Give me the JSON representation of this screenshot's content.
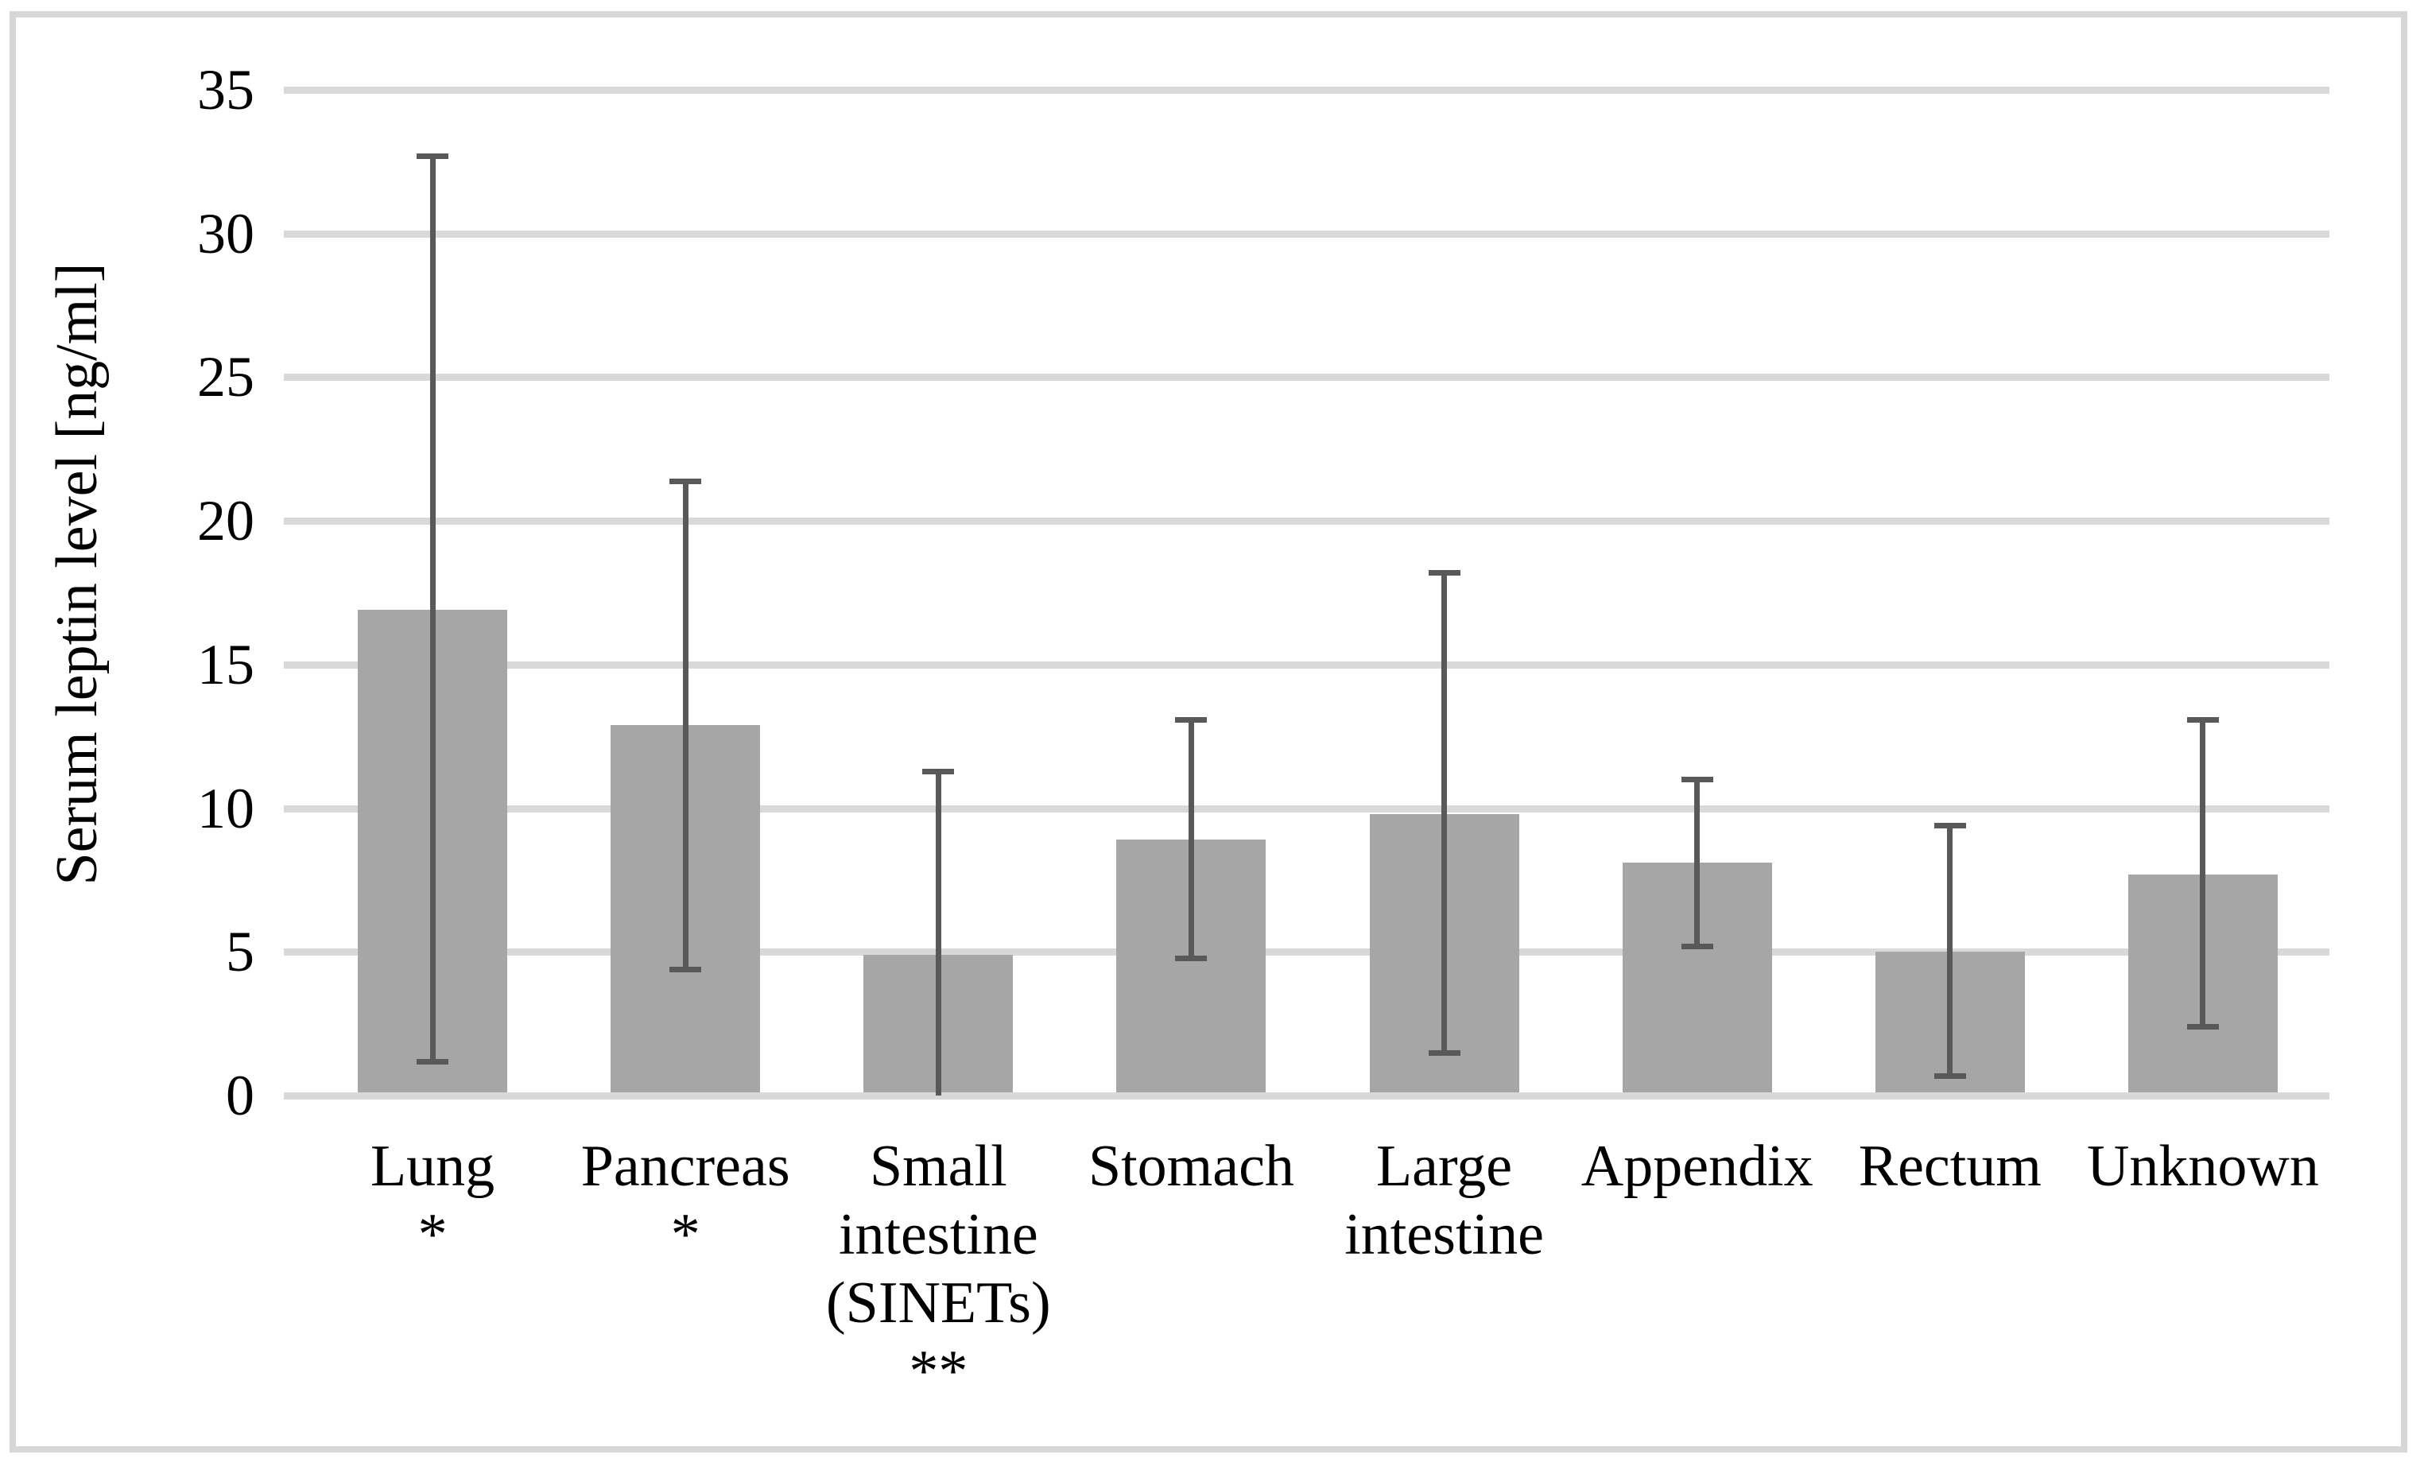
{
  "chart_data": {
    "type": "bar",
    "title": "",
    "xlabel": "",
    "ylabel": "Serum leptin level [ng/ml]",
    "ylabel_units": "ng/ml",
    "ylim": [
      0,
      35
    ],
    "yticks": [
      0,
      5,
      10,
      15,
      20,
      25,
      30,
      35
    ],
    "grid": true,
    "legend": "none",
    "categories": [
      "Lung",
      "Pancreas",
      "Small intestine (SINETs)",
      "Stomach",
      "Large intestine",
      "Appendix",
      "Rectum",
      "Unknown"
    ],
    "category_label_lines": [
      [
        "Lung"
      ],
      [
        "Pancreas"
      ],
      [
        "Small",
        "intestine",
        "(SINETs)"
      ],
      [
        "Stomach"
      ],
      [
        "Large",
        "intestine"
      ],
      [
        "Appendix"
      ],
      [
        "Rectum"
      ],
      [
        "Unknown"
      ]
    ],
    "significance_markers": [
      "*",
      "*",
      "**",
      "",
      "",
      "",
      "",
      ""
    ],
    "values": [
      16.9,
      12.9,
      4.9,
      8.9,
      9.8,
      8.1,
      5.0,
      7.7
    ],
    "error_high": [
      32.7,
      21.4,
      11.3,
      13.1,
      18.2,
      11.0,
      9.4,
      13.1
    ],
    "error_low": [
      1.2,
      4.4,
      0,
      4.8,
      1.5,
      5.2,
      0.7,
      2.4
    ],
    "colors": {
      "bar_fill": "#a6a6a6",
      "error_bar": "#595959",
      "gridline": "#d9d9d9",
      "frame_border": "#d7d7d7",
      "text": "#000000"
    }
  }
}
